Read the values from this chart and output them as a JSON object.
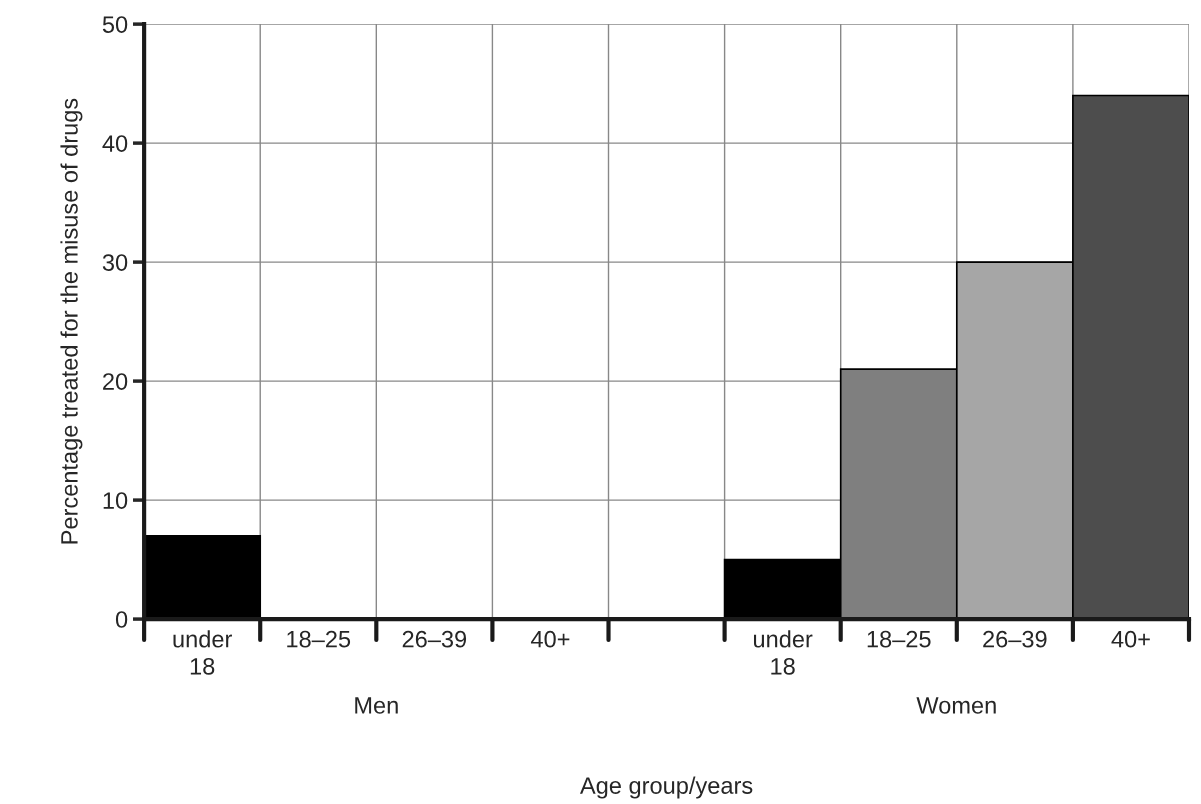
{
  "chart_data": {
    "type": "bar",
    "xlabel": "Age group/years",
    "ylabel": "Percentage treated for the misuse of drugs",
    "categories": [
      "under\n18",
      "18–25",
      "26–39",
      "40+",
      null,
      "under\n18",
      "18–25",
      "26–39",
      "40+"
    ],
    "values": [
      7,
      null,
      null,
      null,
      null,
      5,
      21,
      30,
      44
    ],
    "colors": [
      "#000000",
      "#000000",
      "#000000",
      "#000000",
      "#000000",
      "#000000",
      "#7f7f7f",
      "#a6a6a6",
      "#4d4d4d"
    ],
    "ylim": [
      0,
      50
    ],
    "yticks": [
      0,
      10,
      20,
      30,
      40,
      50
    ],
    "grid": true,
    "annotations": [
      "Men",
      "Women"
    ]
  }
}
